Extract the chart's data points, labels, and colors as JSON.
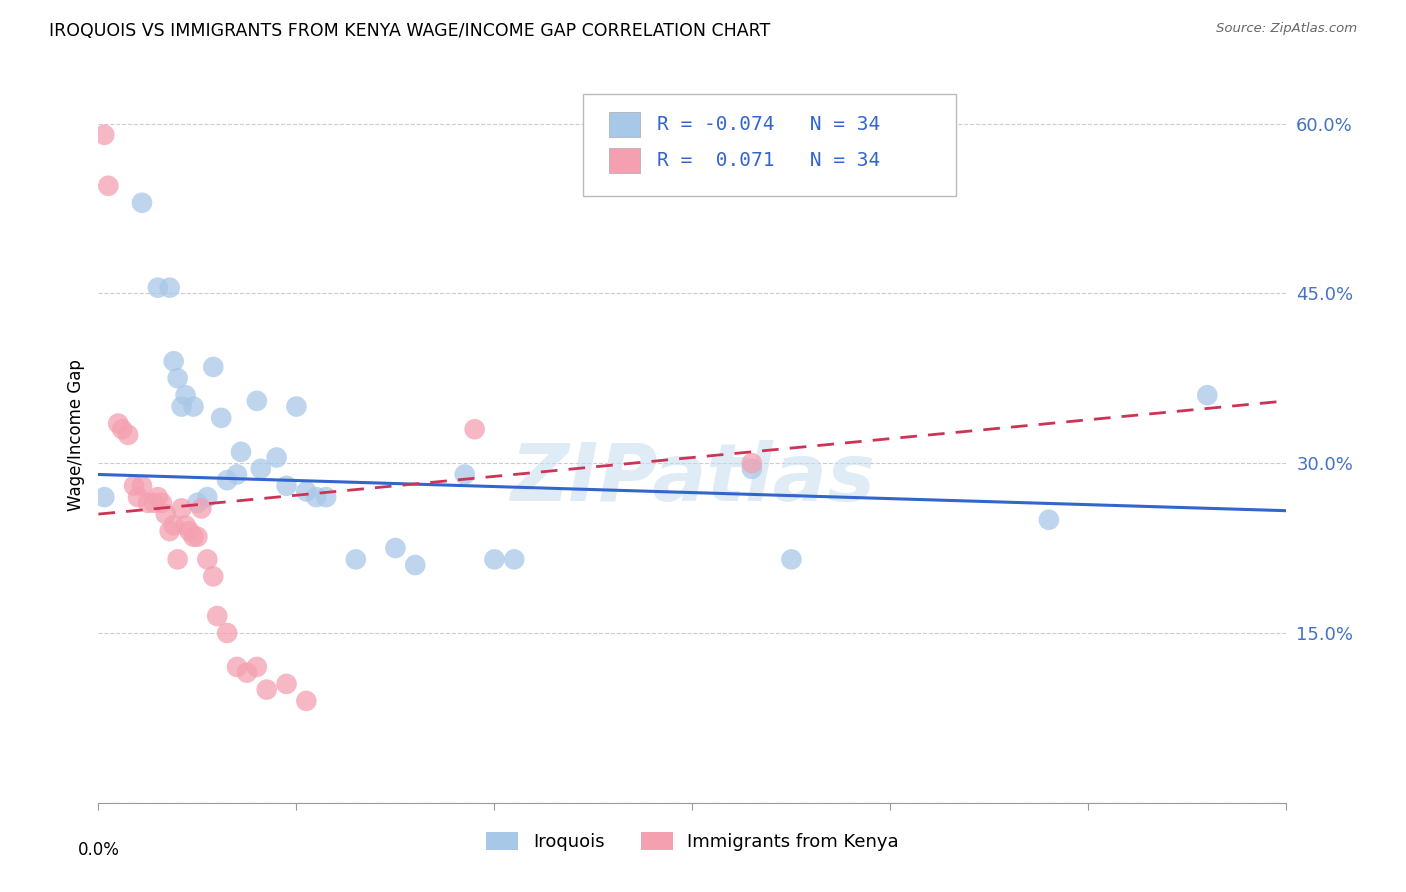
{
  "title": "IROQUOIS VS IMMIGRANTS FROM KENYA WAGE/INCOME GAP CORRELATION CHART",
  "source": "Source: ZipAtlas.com",
  "ylabel": "Wage/Income Gap",
  "yticks": [
    0.0,
    0.15,
    0.3,
    0.45,
    0.6
  ],
  "ytick_labels": [
    "",
    "15.0%",
    "30.0%",
    "45.0%",
    "60.0%"
  ],
  "xlim": [
    0.0,
    0.6
  ],
  "ylim": [
    0.0,
    0.65
  ],
  "legend_label1": "Iroquois",
  "legend_label2": "Immigrants from Kenya",
  "blue_color": "#a8c8e8",
  "pink_color": "#f4a0b0",
  "blue_line_color": "#3366cc",
  "pink_line_color": "#cc3355",
  "watermark": "ZIPatlas",
  "iroquois_x": [
    0.003,
    0.022,
    0.03,
    0.036,
    0.038,
    0.04,
    0.042,
    0.044,
    0.048,
    0.05,
    0.055,
    0.058,
    0.062,
    0.065,
    0.07,
    0.072,
    0.08,
    0.082,
    0.09,
    0.095,
    0.1,
    0.105,
    0.11,
    0.115,
    0.13,
    0.15,
    0.16,
    0.185,
    0.2,
    0.21,
    0.33,
    0.35,
    0.48,
    0.56
  ],
  "iroquois_y": [
    0.27,
    0.53,
    0.455,
    0.455,
    0.39,
    0.375,
    0.35,
    0.36,
    0.35,
    0.265,
    0.27,
    0.385,
    0.34,
    0.285,
    0.29,
    0.31,
    0.355,
    0.295,
    0.305,
    0.28,
    0.35,
    0.275,
    0.27,
    0.27,
    0.215,
    0.225,
    0.21,
    0.29,
    0.215,
    0.215,
    0.295,
    0.215,
    0.25,
    0.36
  ],
  "kenya_x": [
    0.003,
    0.005,
    0.01,
    0.012,
    0.015,
    0.018,
    0.02,
    0.022,
    0.025,
    0.028,
    0.03,
    0.032,
    0.034,
    0.036,
    0.038,
    0.04,
    0.042,
    0.044,
    0.046,
    0.048,
    0.05,
    0.052,
    0.055,
    0.058,
    0.06,
    0.065,
    0.07,
    0.075,
    0.08,
    0.085,
    0.095,
    0.105,
    0.19,
    0.33
  ],
  "kenya_y": [
    0.59,
    0.545,
    0.335,
    0.33,
    0.325,
    0.28,
    0.27,
    0.28,
    0.265,
    0.265,
    0.27,
    0.265,
    0.255,
    0.24,
    0.245,
    0.215,
    0.26,
    0.245,
    0.24,
    0.235,
    0.235,
    0.26,
    0.215,
    0.2,
    0.165,
    0.15,
    0.12,
    0.115,
    0.12,
    0.1,
    0.105,
    0.09,
    0.33,
    0.3
  ],
  "blue_trend_x": [
    0.0,
    0.6
  ],
  "blue_trend_y": [
    0.29,
    0.258
  ],
  "pink_trend_x": [
    0.0,
    0.6
  ],
  "pink_trend_y": [
    0.255,
    0.355
  ]
}
